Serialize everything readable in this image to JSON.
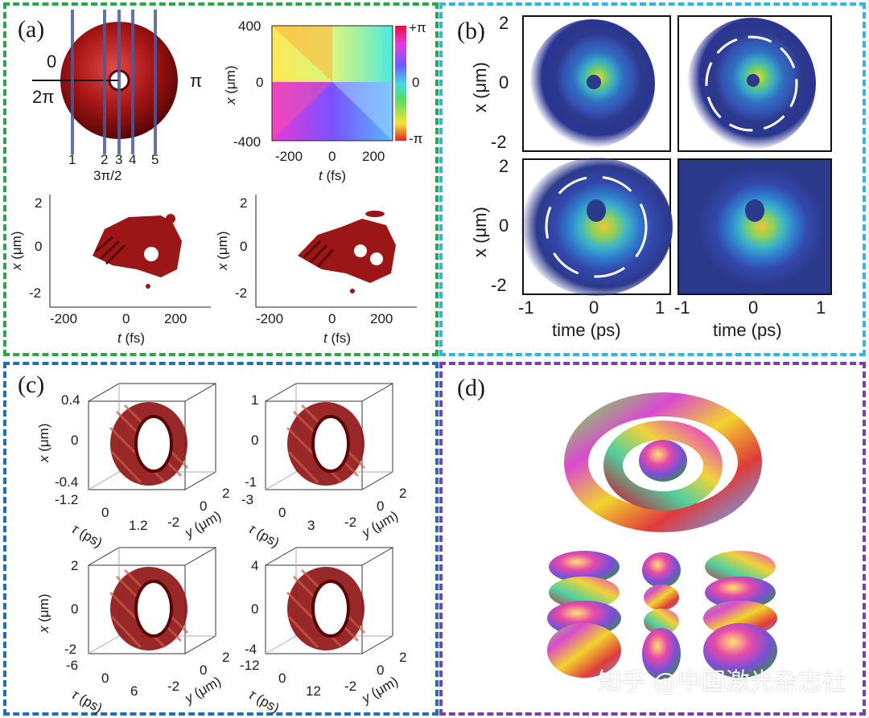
{
  "colors": {
    "panel_a_border": "#28a745",
    "panel_b_border": "#2eb6e6",
    "panel_c_border": "#1f6fb8",
    "panel_d_border": "#7a3fa8",
    "isosurface_red": "#8e1212",
    "heatmap_dark": "#2c3a8c",
    "heatmap_hot": "#f2d32a"
  },
  "panel_a": {
    "label": "(a)",
    "torus": {
      "phase_left": "0",
      "phase_left_bottom": "2π",
      "phase_right": "π",
      "phase_bottom": "3π/2",
      "slice_labels": [
        "1",
        "2",
        "3",
        "4",
        "5"
      ]
    },
    "phase_map": {
      "y_ticks": [
        "400",
        "0",
        "-400"
      ],
      "y_label_var": "x",
      "y_label_unit": " (μm)",
      "x_ticks": [
        "-200",
        "0",
        "200"
      ],
      "x_label_var": "t",
      "x_label_unit": " (fs)",
      "colorbar_ticks": [
        "+π",
        "0",
        "-π"
      ]
    },
    "iso_plots": {
      "y_ticks": [
        "2",
        "0",
        "-2"
      ],
      "y_label_var": "x",
      "y_label_unit": " (μm)",
      "x_ticks": [
        "-200",
        "0",
        "200"
      ],
      "x_label_var": "t",
      "x_label_unit": " (fs)"
    }
  },
  "panel_b": {
    "label": "(b)",
    "y_ticks": [
      "2",
      "0",
      "-2"
    ],
    "y_label": "x (μm)",
    "x_ticks": [
      "-1",
      "0",
      "1"
    ],
    "x_label": "time (ps)"
  },
  "panel_c": {
    "label": "(c)",
    "plots": [
      {
        "x_ticks": [
          "0.4",
          "0",
          "-0.4"
        ],
        "tau_ticks": [
          "-1.2",
          "0",
          "1.2"
        ],
        "y_ticks": [
          "-2",
          "0",
          "2"
        ]
      },
      {
        "x_ticks": [
          "1",
          "0",
          "-1"
        ],
        "tau_ticks": [
          "-3",
          "0",
          "3"
        ],
        "y_ticks": [
          "-2",
          "0",
          "2"
        ]
      },
      {
        "x_ticks": [
          "2",
          "0",
          "-2"
        ],
        "tau_ticks": [
          "-6",
          "0",
          "6"
        ],
        "y_ticks": [
          "-2",
          "0",
          "2"
        ]
      },
      {
        "x_ticks": [
          "4",
          "0",
          "-4"
        ],
        "tau_ticks": [
          "-12",
          "0",
          "12"
        ],
        "y_ticks": [
          "-2",
          "0",
          "2"
        ]
      }
    ],
    "x_label_var": "x",
    "x_label_unit": " (μm)",
    "tau_label_var": "τ",
    "tau_label_unit": " (ps)",
    "y_label_var": "y",
    "y_label_unit": " (μm)"
  },
  "panel_d": {
    "label": "(d)"
  },
  "watermark": "知乎 @中国激光杂志社"
}
